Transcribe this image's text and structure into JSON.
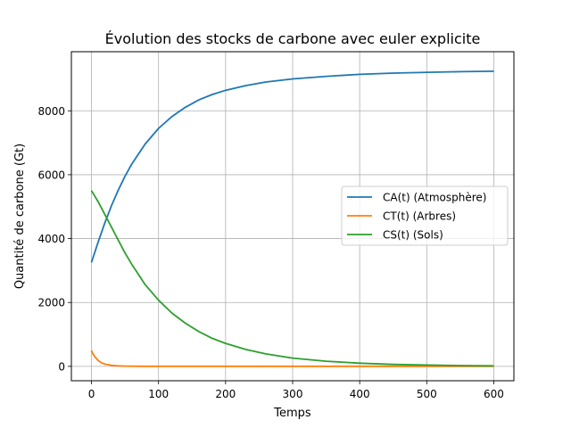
{
  "chart_data": {
    "type": "line",
    "title": "Évolution des stocks de carbone avec euler explicite",
    "xlabel": "Temps",
    "ylabel": "Quantité de carbone (Gt)",
    "xlim": [
      -30,
      630
    ],
    "ylim": [
      -450,
      9850
    ],
    "xticks": [
      0,
      100,
      200,
      300,
      400,
      500,
      600
    ],
    "yticks": [
      0,
      2000,
      4000,
      6000,
      8000
    ],
    "grid": true,
    "legend_position": "center-right",
    "series": [
      {
        "name": "CA(t) (Atmosphère)",
        "color": "#1f77b4",
        "x": [
          0,
          10,
          20,
          30,
          40,
          50,
          60,
          80,
          100,
          120,
          140,
          160,
          180,
          200,
          230,
          260,
          300,
          350,
          400,
          450,
          500,
          550,
          600
        ],
        "y": [
          3250,
          3900,
          4500,
          5040,
          5520,
          5950,
          6330,
          6960,
          7450,
          7820,
          8110,
          8340,
          8510,
          8640,
          8790,
          8900,
          9000,
          9080,
          9140,
          9180,
          9205,
          9225,
          9240
        ]
      },
      {
        "name": "CT(t) (Arbres)",
        "color": "#ff7f0e",
        "x": [
          0,
          2,
          5,
          10,
          15,
          20,
          30,
          40,
          50,
          60,
          80,
          100,
          200,
          300,
          400,
          500,
          600
        ],
        "y": [
          500,
          400,
          300,
          180,
          110,
          70,
          30,
          15,
          8,
          5,
          3,
          2,
          2,
          2,
          2,
          2,
          2
        ]
      },
      {
        "name": "CS(t) (Sols)",
        "color": "#2ca02c",
        "x": [
          0,
          10,
          20,
          30,
          40,
          50,
          60,
          80,
          100,
          120,
          140,
          160,
          180,
          200,
          230,
          260,
          300,
          350,
          400,
          450,
          500,
          550,
          600
        ],
        "y": [
          5500,
          5150,
          4750,
          4350,
          3950,
          3550,
          3200,
          2560,
          2070,
          1670,
          1350,
          1090,
          880,
          720,
          530,
          390,
          260,
          160,
          100,
          60,
          40,
          25,
          15
        ]
      }
    ]
  }
}
